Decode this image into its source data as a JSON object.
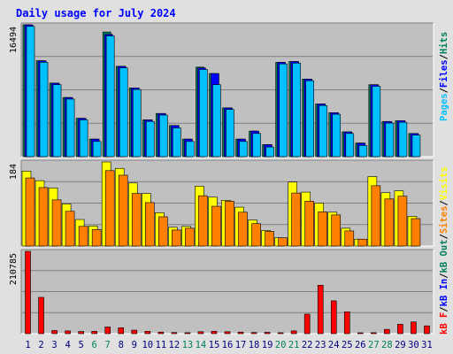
{
  "colors": {
    "background": "#e0e0e0",
    "panel": "#c0c0c0",
    "title": "#0000ff",
    "hits": "#00805c",
    "files": "#0000ff",
    "pages": "#00c0ff",
    "visits": "#ffff00",
    "sites": "#ff8000",
    "kb_in": "#0000ff",
    "kb_out": "#00805c",
    "kb_f": "#ff0000",
    "weekend_day": "#00805c",
    "weekday": "#000080"
  },
  "chart_data": {
    "type": "bar",
    "title": "Daily usage for July 2024",
    "categories": [
      "1",
      "2",
      "3",
      "4",
      "5",
      "6",
      "7",
      "8",
      "9",
      "10",
      "11",
      "12",
      "13",
      "14",
      "15",
      "16",
      "17",
      "18",
      "19",
      "20",
      "21",
      "22",
      "23",
      "24",
      "25",
      "26",
      "27",
      "28",
      "29",
      "30",
      "31"
    ],
    "weekend_days": [
      "6",
      "7",
      "13",
      "14",
      "20",
      "21",
      "27",
      "28"
    ],
    "panels": [
      {
        "ymax_label": "16494",
        "ymax": 16494,
        "right_label_parts": [
          "Pages",
          "Files",
          "Hits"
        ],
        "series": [
          {
            "name": "Hits",
            "values": [
              16494,
              12000,
              9200,
              7400,
              4800,
              2200,
              15600,
              11300,
              8600,
              4600,
              5400,
              3900,
              2200,
              11200,
              10400,
              6100,
              2200,
              3200,
              1500,
              11800,
              11900,
              9700,
              6600,
              5500,
              3100,
              1700,
              9000,
              4400,
              4500,
              2900,
              0
            ]
          },
          {
            "name": "Files",
            "values": [
              16494,
              12000,
              9200,
              7400,
              4800,
              2200,
              15300,
              11300,
              8600,
              4600,
              5400,
              3900,
              2200,
              11100,
              10400,
              6100,
              2200,
              3200,
              1500,
              11800,
              11900,
              9700,
              6600,
              5500,
              3100,
              1700,
              9000,
              4400,
              4500,
              2900,
              0
            ]
          },
          {
            "name": "Pages",
            "values": [
              16300,
              11800,
              9000,
              7200,
              4600,
              1900,
              15100,
              11100,
              8400,
              4400,
              5200,
              3600,
              1900,
              10900,
              9000,
              5900,
              1900,
              2900,
              1200,
              11600,
              11700,
              9500,
              6400,
              5300,
              2900,
              1400,
              8800,
              4200,
              4300,
              2700,
              0
            ]
          }
        ]
      },
      {
        "ymax_label": "184",
        "ymax": 184,
        "right_label_parts": [
          "kB F",
          "kB In",
          "kB Out",
          "Sites",
          "Visits"
        ],
        "series": [
          {
            "name": "Visits",
            "values": [
              164,
              143,
              127,
              92,
              58,
              44,
              184,
              170,
              138,
              115,
              73,
              41,
              43,
              131,
              107,
              100,
              85,
              57,
              34,
              18,
              140,
              118,
              94,
              74,
              39,
              15,
              152,
              117,
              121,
              65,
              0
            ]
          },
          {
            "name": "Sites",
            "values": [
              149,
              128,
              101,
              76,
              43,
              36,
              165,
              155,
              115,
              95,
              64,
              35,
              39,
              110,
              87,
              98,
              74,
              49,
              32,
              18,
              116,
              98,
              75,
              68,
              33,
              15,
              132,
              103,
              109,
              60,
              0
            ]
          }
        ]
      },
      {
        "ymax_label": "210785",
        "ymax": 210785,
        "series": [
          {
            "name": "kB F",
            "values": [
              210785,
              93000,
              8000,
              7000,
              5500,
              6000,
              17000,
              15000,
              9000,
              6000,
              4000,
              3000,
              2500,
              5000,
              6000,
              5000,
              4000,
              3000,
              3500,
              2500,
              7000,
              50000,
              124000,
              84000,
              56000,
              2000,
              2500,
              11000,
              24000,
              30000,
              20000
            ]
          }
        ]
      }
    ]
  }
}
